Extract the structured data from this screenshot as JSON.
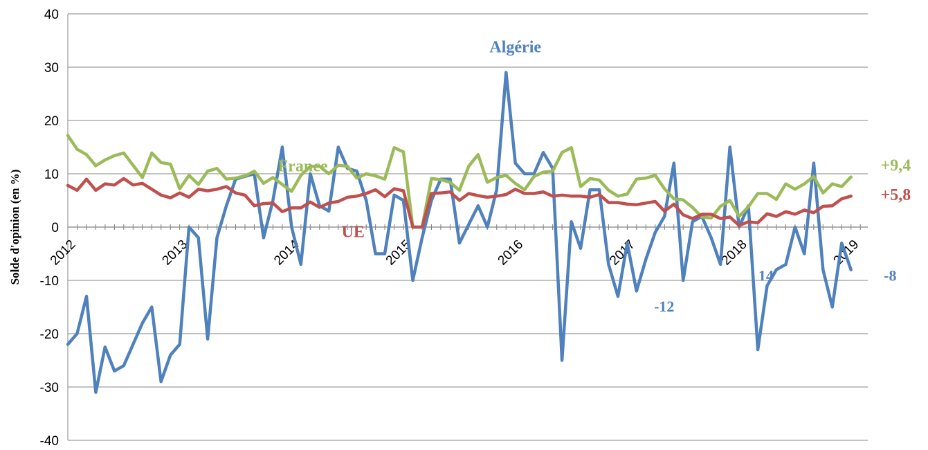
{
  "chart_data": {
    "type": "line",
    "title": "",
    "xlabel": "",
    "ylabel": "Solde d'opinion (en %)",
    "ylim": [
      -40,
      40
    ],
    "yticks": [
      -40,
      -30,
      -20,
      -10,
      0,
      10,
      20,
      30,
      40
    ],
    "xlim": [
      2012,
      2019.15
    ],
    "xticks": [
      2012,
      2013,
      2014,
      2015,
      2016,
      2017,
      2018,
      2019
    ],
    "grid": "horizontal",
    "legend": "none (inline labels)",
    "series": [
      {
        "name": "Algérie",
        "color": "#4f81bd",
        "x": [
          2012.0,
          2012.083,
          2012.167,
          2012.25,
          2012.333,
          2012.417,
          2012.5,
          2012.583,
          2012.667,
          2012.75,
          2012.833,
          2012.917,
          2013.0,
          2013.083,
          2013.167,
          2013.25,
          2013.333,
          2013.417,
          2013.5,
          2013.583,
          2013.667,
          2013.75,
          2013.833,
          2013.917,
          2014.0,
          2014.083,
          2014.167,
          2014.25,
          2014.333,
          2014.417,
          2014.5,
          2014.583,
          2014.667,
          2014.75,
          2014.833,
          2014.917,
          2015.0,
          2015.083,
          2015.167,
          2015.25,
          2015.333,
          2015.417,
          2015.5,
          2015.583,
          2015.667,
          2015.75,
          2015.833,
          2015.917,
          2016.0,
          2016.083,
          2016.167,
          2016.25,
          2016.333,
          2016.417,
          2016.5,
          2016.583,
          2016.667,
          2016.75,
          2016.833,
          2016.917,
          2017.0,
          2017.083,
          2017.167,
          2017.25,
          2017.333,
          2017.417,
          2017.5,
          2017.583,
          2017.667,
          2017.75,
          2017.833,
          2017.917,
          2018.0,
          2018.083,
          2018.167,
          2018.25,
          2018.333,
          2018.417,
          2018.5,
          2018.583,
          2018.667,
          2018.75,
          2018.833,
          2018.917,
          2019.0
        ],
        "y": [
          -22,
          -20,
          -13,
          -31,
          -22.5,
          -27,
          -26,
          -22,
          -18,
          -15,
          -29,
          -24,
          -22,
          0,
          -2,
          -21,
          -2,
          4,
          9,
          9.5,
          10,
          -2,
          5,
          15,
          0,
          -7,
          10,
          4,
          3,
          15,
          11,
          10.5,
          5,
          -5,
          -5,
          6,
          5,
          -10,
          -2,
          5,
          9,
          9,
          -3,
          0.5,
          4,
          0,
          7,
          29,
          12,
          10,
          10,
          14,
          11,
          -25,
          1,
          -4,
          7,
          7,
          -7,
          -13,
          -3,
          -12,
          -6,
          -1,
          2,
          12,
          -10,
          1,
          2,
          -2,
          -7,
          15,
          0,
          4,
          -23,
          -11,
          -8,
          -7,
          0,
          -5,
          12,
          -8,
          -15,
          -3,
          -8
        ]
      },
      {
        "name": "France",
        "color": "#9bbb59",
        "x": [
          2012.0,
          2012.083,
          2012.167,
          2012.25,
          2012.333,
          2012.417,
          2012.5,
          2012.583,
          2012.667,
          2012.75,
          2012.833,
          2012.917,
          2013.0,
          2013.083,
          2013.167,
          2013.25,
          2013.333,
          2013.417,
          2013.5,
          2013.583,
          2013.667,
          2013.75,
          2013.833,
          2013.917,
          2014.0,
          2014.083,
          2014.167,
          2014.25,
          2014.333,
          2014.417,
          2014.5,
          2014.583,
          2014.667,
          2014.75,
          2014.833,
          2014.917,
          2015.0,
          2015.083,
          2015.167,
          2015.25,
          2015.333,
          2015.417,
          2015.5,
          2015.583,
          2015.667,
          2015.75,
          2015.833,
          2015.917,
          2016.0,
          2016.083,
          2016.167,
          2016.25,
          2016.333,
          2016.417,
          2016.5,
          2016.583,
          2016.667,
          2016.75,
          2016.833,
          2016.917,
          2017.0,
          2017.083,
          2017.167,
          2017.25,
          2017.333,
          2017.417,
          2017.5,
          2017.583,
          2017.667,
          2017.75,
          2017.833,
          2017.917,
          2018.0,
          2018.083,
          2018.167,
          2018.25,
          2018.333,
          2018.417,
          2018.5,
          2018.583,
          2018.667,
          2018.75,
          2018.833,
          2018.917,
          2019.0
        ],
        "y": [
          17.2,
          14.6,
          13.6,
          11.5,
          12.6,
          13.4,
          13.9,
          11.6,
          9.3,
          13.9,
          12.1,
          11.8,
          7.2,
          9.7,
          8,
          10.5,
          11,
          9,
          9.2,
          9.6,
          10.5,
          8.2,
          9.3,
          8,
          6.7,
          9.7,
          11.4,
          11.4,
          10,
          11.6,
          11.4,
          9.2,
          10,
          9.6,
          9,
          14.9,
          14.1,
          0,
          0,
          9.1,
          8.9,
          8.4,
          6.9,
          11.4,
          13.6,
          8.4,
          9.3,
          9.7,
          8.2,
          7,
          9.5,
          10.3,
          10.5,
          14,
          14.9,
          7.6,
          9.1,
          8.8,
          6.9,
          5.8,
          6.2,
          9,
          9.2,
          9.7,
          7.2,
          5.3,
          5.1,
          3.7,
          1.9,
          1.7,
          3.9,
          5,
          2,
          3.8,
          6.3,
          6.3,
          5.2,
          8.1,
          7.1,
          8.1,
          9.5,
          6.4,
          8.1,
          7.6,
          9.4
        ]
      },
      {
        "name": "UE",
        "color": "#c0504d",
        "x": [
          2012.0,
          2012.083,
          2012.167,
          2012.25,
          2012.333,
          2012.417,
          2012.5,
          2012.583,
          2012.667,
          2012.75,
          2012.833,
          2012.917,
          2013.0,
          2013.083,
          2013.167,
          2013.25,
          2013.333,
          2013.417,
          2013.5,
          2013.583,
          2013.667,
          2013.75,
          2013.833,
          2013.917,
          2014.0,
          2014.083,
          2014.167,
          2014.25,
          2014.333,
          2014.417,
          2014.5,
          2014.583,
          2014.667,
          2014.75,
          2014.833,
          2014.917,
          2015.0,
          2015.083,
          2015.167,
          2015.25,
          2015.333,
          2015.417,
          2015.5,
          2015.583,
          2015.667,
          2015.75,
          2015.833,
          2015.917,
          2016.0,
          2016.083,
          2016.167,
          2016.25,
          2016.333,
          2016.417,
          2016.5,
          2016.583,
          2016.667,
          2016.75,
          2016.833,
          2016.917,
          2017.0,
          2017.083,
          2017.167,
          2017.25,
          2017.333,
          2017.417,
          2017.5,
          2017.583,
          2017.667,
          2017.75,
          2017.833,
          2017.917,
          2018.0,
          2018.083,
          2018.167,
          2018.25,
          2018.333,
          2018.417,
          2018.5,
          2018.583,
          2018.667,
          2018.75,
          2018.833,
          2018.917,
          2019.0
        ],
        "y": [
          7.8,
          6.9,
          9,
          6.9,
          8.1,
          7.9,
          9.1,
          7.9,
          8.2,
          7.1,
          6,
          5.5,
          6.4,
          5.6,
          7.1,
          6.8,
          7.1,
          7.6,
          6.4,
          6,
          4,
          4.4,
          4.5,
          2.9,
          3.6,
          3.6,
          4.7,
          3.7,
          4.5,
          4.8,
          5.6,
          5.8,
          6.3,
          7,
          5.7,
          7.2,
          6.8,
          0,
          0,
          6.3,
          6.4,
          6.6,
          5,
          6.3,
          5.9,
          5.6,
          5.8,
          6.1,
          7.1,
          6.3,
          6.3,
          6.6,
          5.8,
          6,
          5.8,
          5.8,
          5.6,
          6.1,
          4.6,
          4.6,
          4.3,
          4.2,
          4.5,
          4.8,
          3,
          4.3,
          2.3,
          1.6,
          2.4,
          2.4,
          1.6,
          1.9,
          0.3,
          1,
          0.8,
          2.5,
          2,
          2.9,
          2.4,
          3.2,
          2.7,
          3.9,
          4,
          5.3,
          5.8
        ]
      }
    ],
    "annotations": [
      {
        "text": "Algérie",
        "color": "#4f81bd",
        "x": 2016.0,
        "y": 33.5,
        "size": "large"
      },
      {
        "text": "France",
        "color": "#9bbb59",
        "x": 2014.1,
        "y": 11.2,
        "size": "large"
      },
      {
        "text": "UE",
        "color": "#c0504d",
        "x": 2014.55,
        "y": -1.2,
        "size": "large"
      },
      {
        "text": "+9,4",
        "color": "#9bbb59",
        "x": 2019.4,
        "y": 11.3,
        "size": "large"
      },
      {
        "text": "+5,8",
        "color": "#c0504d",
        "x": 2019.4,
        "y": 5.8,
        "size": "large"
      },
      {
        "text": "-8",
        "color": "#4f81bd",
        "x": 2019.35,
        "y": -9.4,
        "size": "medium"
      },
      {
        "text": "-12",
        "color": "#4f81bd",
        "x": 2017.33,
        "y": -15.2,
        "size": "medium"
      },
      {
        "text": "14",
        "color": "#4f81bd",
        "x": 2018.24,
        "y": -9.4,
        "size": "medium"
      }
    ]
  }
}
